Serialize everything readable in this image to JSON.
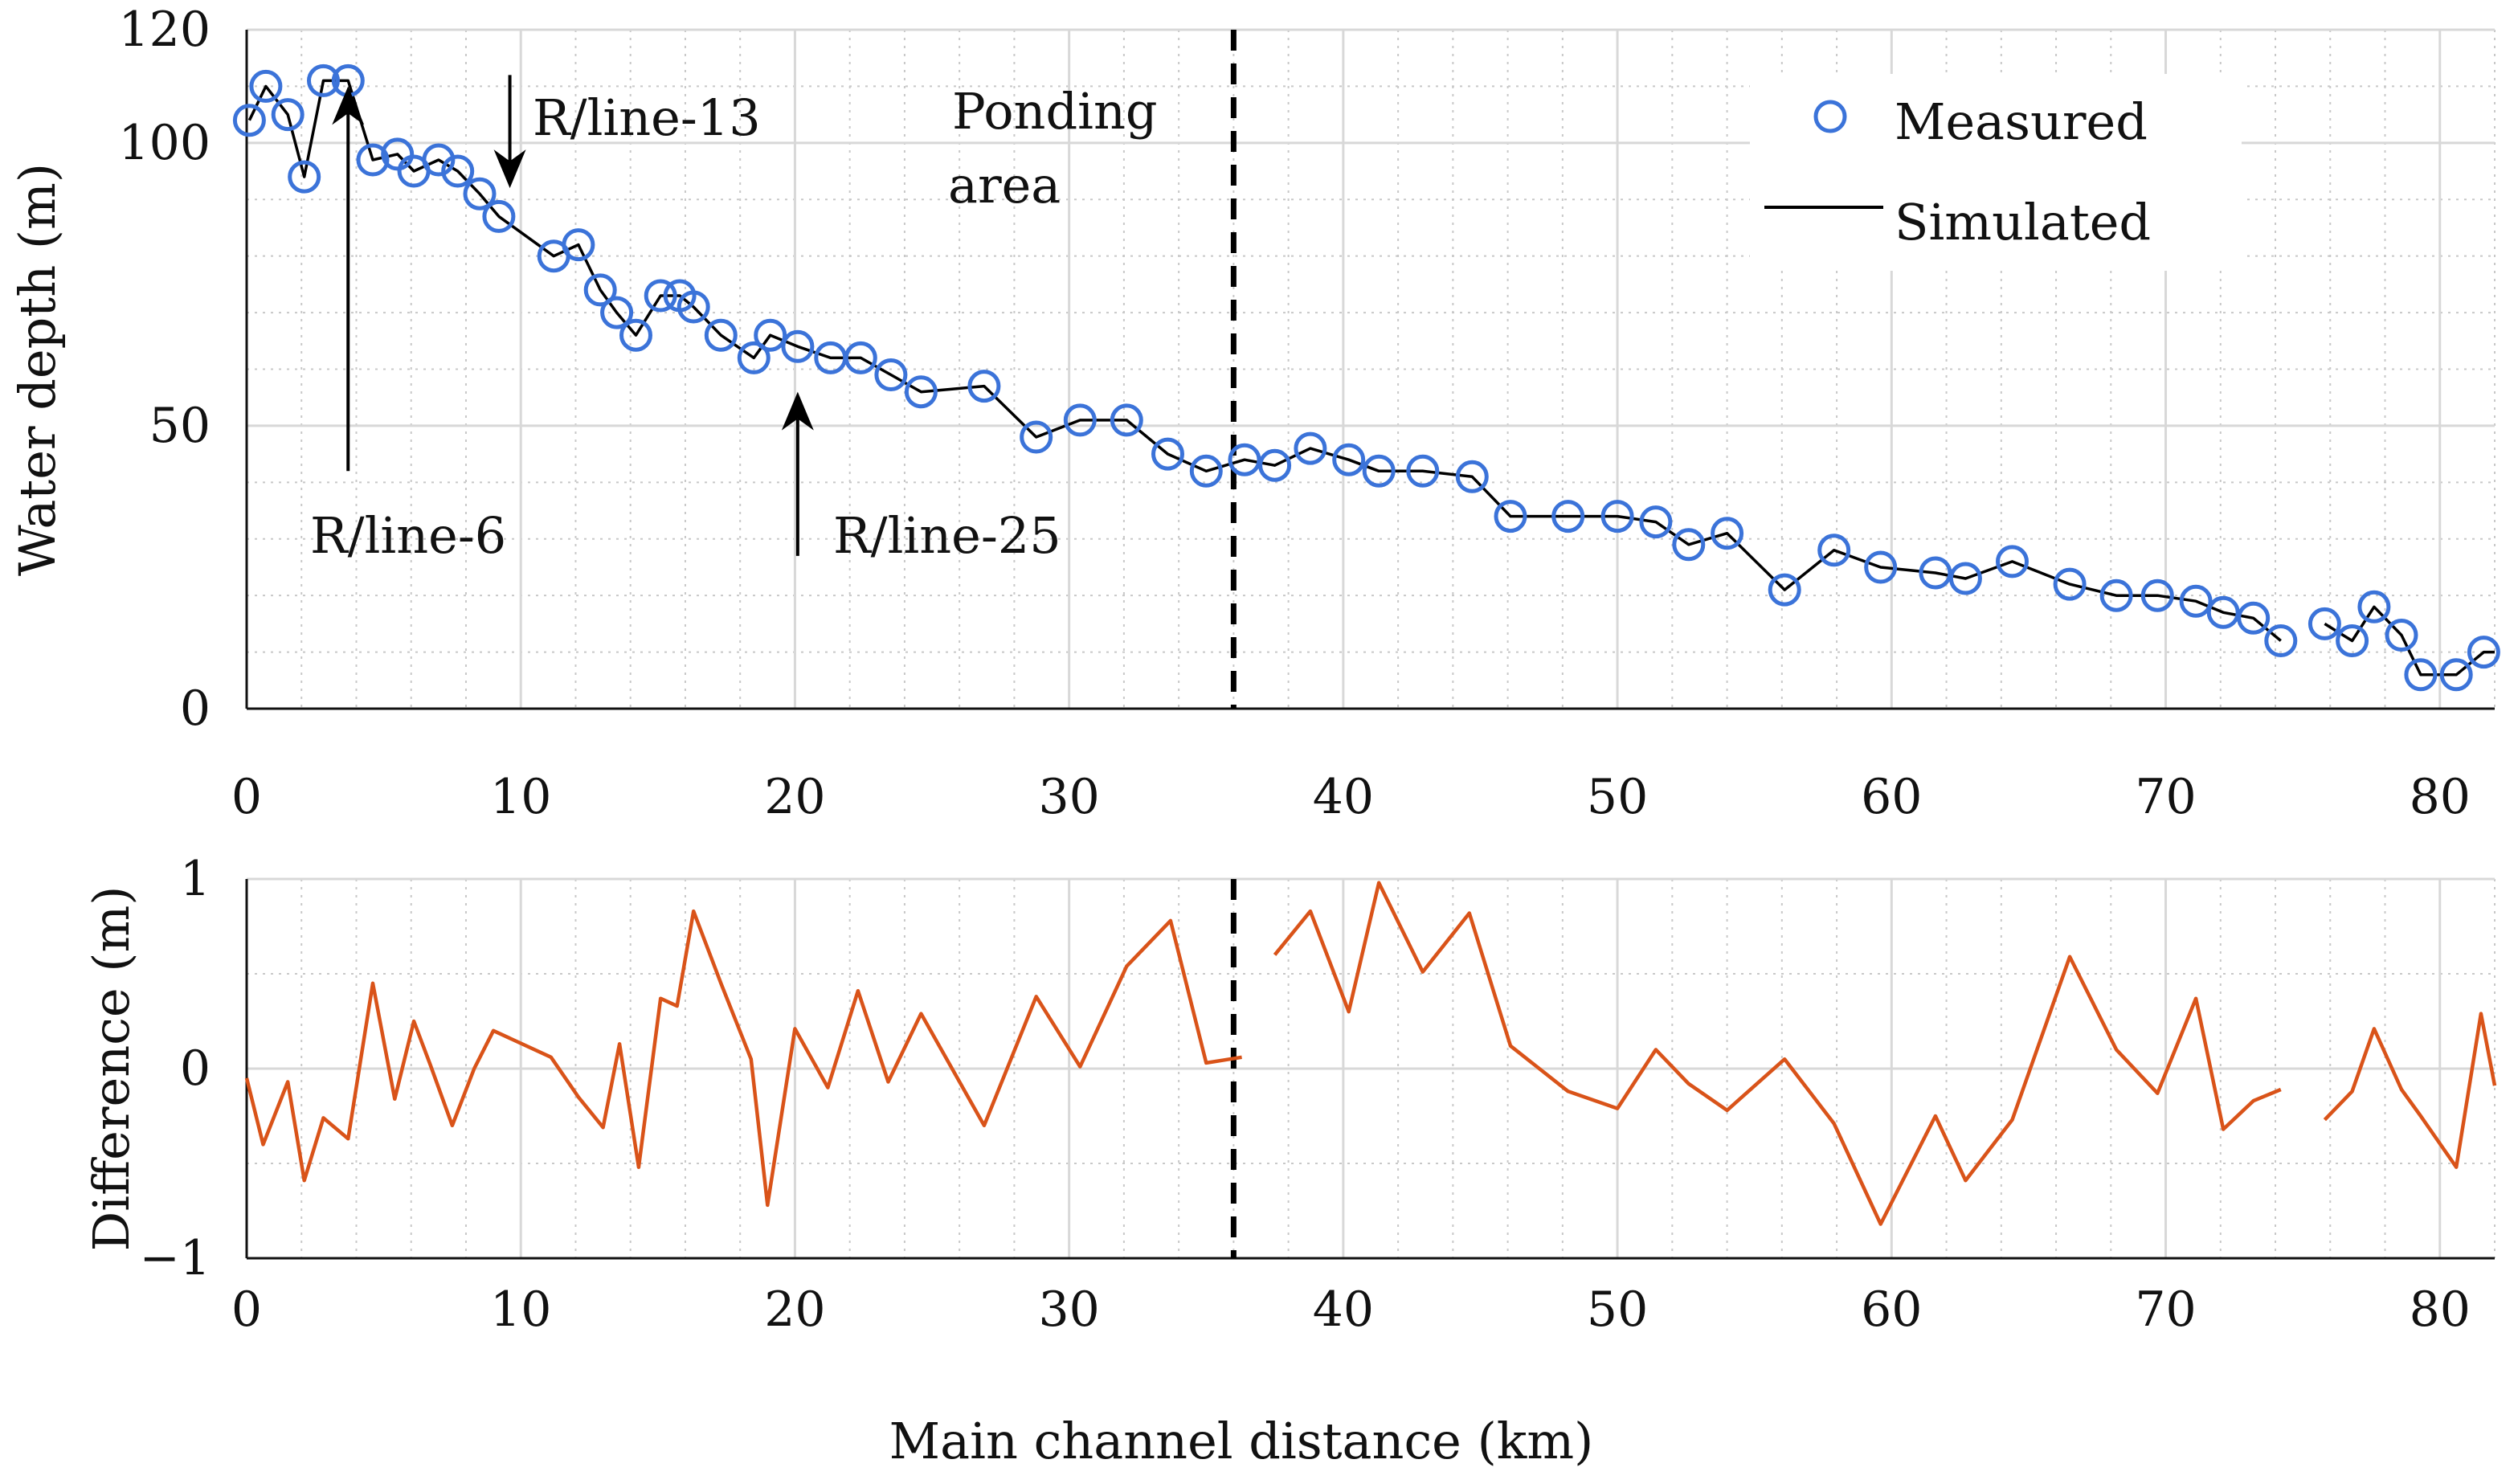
{
  "chart_data": [
    {
      "type": "line",
      "title": "",
      "xlabel": "",
      "ylabel": "Water depth (m)",
      "xlim": [
        0,
        82
      ],
      "ylim": [
        0,
        120
      ],
      "xticks": [
        0,
        10,
        20,
        30,
        40,
        50,
        60,
        70,
        80
      ],
      "xtick_labels": [
        "0",
        "10",
        "20",
        "30",
        "40",
        "50",
        "60",
        "70",
        "80"
      ],
      "yticks": [
        0,
        50,
        100,
        120
      ],
      "ytick_labels": [
        "0",
        "50",
        "100",
        "120"
      ],
      "grid": "major solid, minor dotted",
      "legend": {
        "position": "top-right",
        "entries": [
          "Measured",
          "Simulated"
        ]
      },
      "series": [
        {
          "name": "Measured",
          "style": "markers",
          "color": "#3b73d9",
          "x": [
            0.1,
            0.7,
            1.5,
            2.1,
            2.8,
            3.7,
            4.6,
            5.5,
            6.1,
            7.0,
            7.7,
            8.5,
            9.2,
            11.2,
            12.1,
            12.9,
            13.5,
            14.2,
            15.1,
            15.8,
            16.3,
            17.3,
            18.5,
            19.1,
            20.1,
            21.3,
            22.4,
            23.5,
            24.6,
            26.9,
            28.8,
            30.4,
            32.1,
            33.6,
            35.0,
            36.4,
            37.5,
            38.8,
            40.2,
            41.3,
            42.9,
            44.7,
            46.1,
            48.2,
            50.0,
            51.4,
            52.6,
            54.0,
            56.1,
            57.9,
            59.6,
            61.6,
            62.7,
            64.4,
            66.5,
            68.2,
            69.7,
            71.1,
            72.1,
            73.2,
            74.2,
            75.8,
            76.8,
            77.6,
            78.6,
            79.3,
            80.6,
            81.6
          ],
          "values": [
            104,
            110,
            105,
            94,
            111,
            111,
            97,
            98,
            95,
            97,
            95,
            91,
            87,
            80,
            82,
            74,
            70,
            66,
            73,
            73,
            71,
            66,
            62,
            66,
            64,
            62,
            62,
            59,
            56,
            57,
            48,
            51,
            51,
            45,
            42,
            44,
            43,
            46,
            44,
            42,
            42,
            41,
            34,
            34,
            34,
            33,
            29,
            31,
            21,
            28,
            25,
            24,
            23,
            26,
            22,
            20,
            20,
            19,
            17,
            16,
            12,
            15,
            12,
            18,
            13,
            6,
            6,
            10
          ]
        },
        {
          "name": "Simulated",
          "style": "line",
          "color": "#000000",
          "x": [
            0.1,
            0.7,
            1.5,
            2.1,
            2.8,
            3.7,
            4.6,
            5.5,
            6.1,
            7.0,
            7.7,
            8.5,
            9.2,
            11.2,
            12.1,
            12.9,
            13.5,
            14.2,
            15.1,
            15.8,
            16.3,
            17.3,
            18.5,
            19.1,
            20.1,
            21.3,
            22.4,
            23.5,
            24.6,
            26.9,
            28.8,
            30.4,
            32.1,
            33.6,
            35.0,
            36.4,
            37.5,
            38.8,
            40.2,
            41.3,
            42.9,
            44.7,
            46.1,
            48.2,
            50.0,
            51.4,
            52.6,
            54.0,
            56.1,
            57.9,
            59.6,
            61.6,
            62.7,
            64.4,
            66.5,
            68.2,
            69.7,
            71.1,
            72.1,
            73.2,
            74.2,
            null,
            75.8,
            76.8,
            77.6,
            78.6,
            79.3,
            80.6,
            81.6,
            82.0
          ],
          "values": [
            104,
            110,
            105,
            94,
            111,
            111,
            97,
            98,
            95,
            97,
            95,
            91,
            87,
            80,
            82,
            74,
            70,
            66,
            73,
            73,
            71,
            66,
            62,
            66,
            64,
            62,
            62,
            59,
            56,
            57,
            48,
            51,
            51,
            45,
            42,
            44,
            43,
            46,
            44,
            42,
            42,
            41,
            34,
            34,
            34,
            33,
            29,
            31,
            21,
            28,
            25,
            24,
            23,
            26,
            22,
            20,
            20,
            19,
            17,
            16,
            12,
            null,
            15,
            12,
            18,
            13,
            6,
            6,
            10,
            10
          ]
        }
      ],
      "vlines": [
        {
          "x": 36.0,
          "style": "dashed",
          "color": "#000000"
        }
      ],
      "annotations": [
        {
          "text": "R/line-13",
          "arrow_x": 9.6,
          "arrow_from_y": 112,
          "arrow_to_y": 92,
          "direction": "down"
        },
        {
          "text": "R/line-6",
          "arrow_x": 3.7,
          "arrow_from_y": 42,
          "arrow_to_y": 110,
          "direction": "up"
        },
        {
          "text": "R/line-25",
          "arrow_x": 20.1,
          "arrow_from_y": 27,
          "arrow_to_y": 56,
          "direction": "up"
        },
        {
          "text": "Ponding",
          "text2": "area"
        }
      ]
    },
    {
      "type": "line",
      "title": "",
      "xlabel": "Main channel distance (km)",
      "ylabel": "Difference (m)",
      "xlim": [
        0,
        82
      ],
      "ylim": [
        -1,
        1
      ],
      "xticks": [
        0,
        10,
        20,
        30,
        40,
        50,
        60,
        70,
        80
      ],
      "xtick_labels": [
        "0",
        "10",
        "20",
        "30",
        "40",
        "50",
        "60",
        "70",
        "80"
      ],
      "yticks": [
        -1,
        0,
        1
      ],
      "ytick_labels": [
        "−1",
        "0",
        "1"
      ],
      "grid": "major solid, minor dotted",
      "series": [
        {
          "name": "Difference",
          "style": "line",
          "color": "#d95319",
          "x": [
            0.0,
            0.6,
            1.5,
            2.1,
            2.8,
            3.7,
            4.6,
            5.4,
            6.1,
            6.7,
            7.5,
            8.3,
            9.0,
            11.1,
            12.1,
            13.0,
            13.6,
            14.3,
            15.1,
            15.7,
            16.3,
            17.3,
            18.4,
            19.0,
            20.0,
            21.2,
            22.3,
            23.4,
            24.6,
            26.9,
            28.8,
            30.4,
            32.1,
            33.7,
            35.0,
            36.3,
            null,
            37.5,
            38.8,
            40.2,
            41.3,
            42.9,
            44.6,
            46.1,
            48.2,
            50.0,
            51.4,
            52.6,
            54.0,
            56.1,
            57.9,
            59.6,
            61.6,
            62.7,
            64.4,
            66.5,
            68.2,
            69.7,
            71.1,
            72.1,
            73.2,
            74.2,
            null,
            75.8,
            76.8,
            77.6,
            78.6,
            79.3,
            80.6,
            81.5,
            82.0
          ],
          "values": [
            -0.05,
            -0.4,
            -0.07,
            -0.59,
            -0.26,
            -0.37,
            0.45,
            -0.16,
            0.25,
            0.02,
            -0.3,
            0.0,
            0.2,
            0.06,
            -0.15,
            -0.31,
            0.13,
            -0.52,
            0.37,
            0.33,
            0.83,
            0.45,
            0.05,
            -0.72,
            0.21,
            -0.1,
            0.41,
            -0.07,
            0.29,
            -0.3,
            0.38,
            0.01,
            0.54,
            0.78,
            0.03,
            0.06,
            null,
            0.6,
            0.83,
            0.3,
            0.98,
            0.51,
            0.82,
            0.12,
            -0.12,
            -0.21,
            0.1,
            -0.08,
            -0.22,
            0.05,
            -0.29,
            -0.82,
            -0.25,
            -0.59,
            -0.27,
            0.59,
            0.1,
            -0.13,
            0.37,
            -0.32,
            -0.17,
            -0.11,
            null,
            -0.27,
            -0.12,
            0.21,
            -0.11,
            -0.25,
            -0.52,
            0.29,
            -0.09
          ]
        }
      ],
      "vlines": [
        {
          "x": 36.0,
          "style": "dashed",
          "color": "#000000"
        }
      ]
    }
  ]
}
